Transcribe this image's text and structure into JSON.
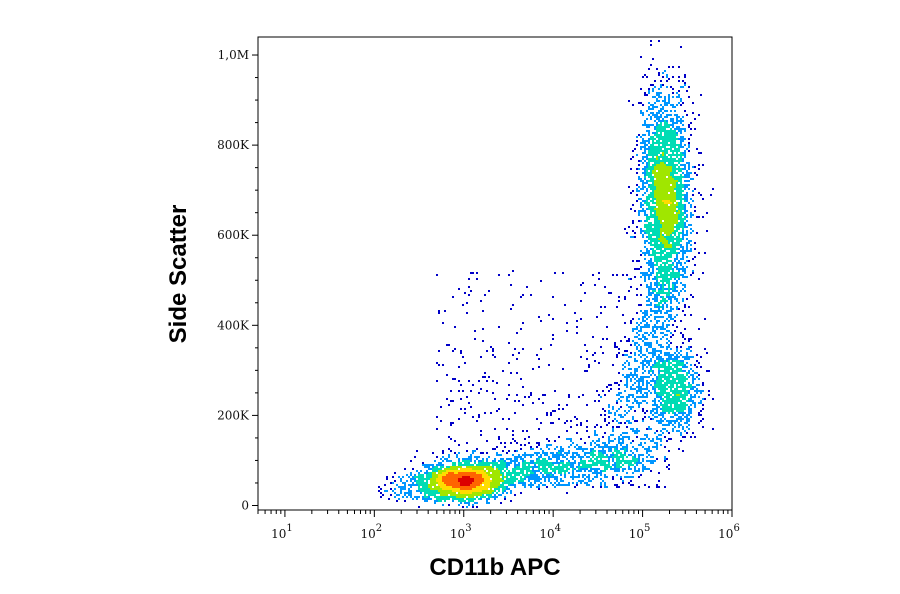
{
  "chart_data": {
    "type": "scatter",
    "subtype": "flow-cytometry-density-dot-plot",
    "xlabel": "CD11b APC",
    "ylabel": "Side Scatter",
    "x_scale": "log",
    "xlim": [
      5,
      1000000
    ],
    "ylim": [
      -10000,
      1040000
    ],
    "x_ticks": [
      {
        "value": 10,
        "base": "10",
        "exp": "1"
      },
      {
        "value": 100,
        "base": "10",
        "exp": "2"
      },
      {
        "value": 1000,
        "base": "10",
        "exp": "3"
      },
      {
        "value": 10000,
        "base": "10",
        "exp": "4"
      },
      {
        "value": 100000,
        "base": "10",
        "exp": "5"
      },
      {
        "value": 1000000,
        "base": "10",
        "exp": "6"
      }
    ],
    "y_ticks": [
      {
        "value": 0,
        "label": "0"
      },
      {
        "value": 200000,
        "label": "200K"
      },
      {
        "value": 400000,
        "label": "400K"
      },
      {
        "value": 600000,
        "label": "600K"
      },
      {
        "value": 800000,
        "label": "800K"
      },
      {
        "value": 1000000,
        "label": "1,0M"
      }
    ],
    "populations": [
      {
        "x_center": 1000,
        "y_center": 55000,
        "count": 2600
      },
      {
        "x_center": 180000,
        "y_center": 680000,
        "count": 3400
      },
      {
        "x_center": 220000,
        "y_center": 260000,
        "count": 1000
      },
      {
        "x_center": 40000,
        "y_center": 90000,
        "count": 1300
      }
    ],
    "color_scale": [
      "#0000c8",
      "#0096ff",
      "#00dcb4",
      "#a0e600",
      "#ffdc00",
      "#ff6400",
      "#dc0000"
    ],
    "grid": false,
    "legend": "none"
  }
}
